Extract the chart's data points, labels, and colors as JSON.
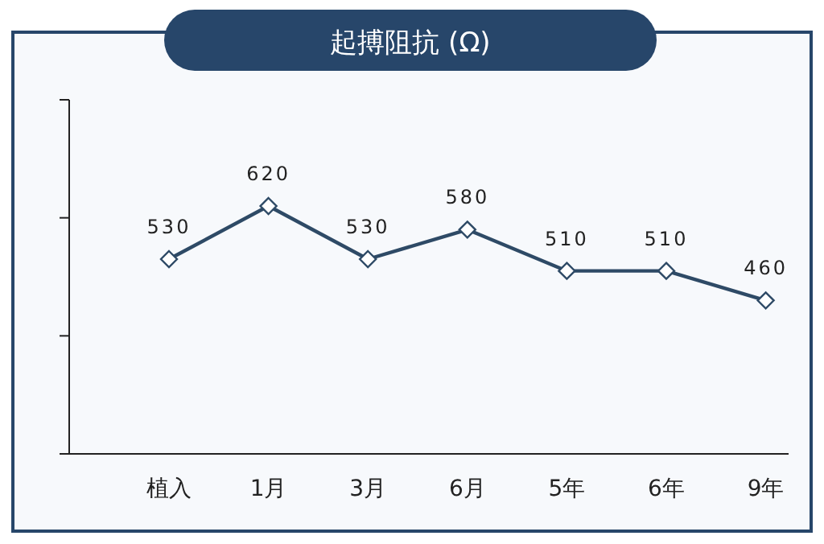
{
  "chart_data": {
    "type": "line",
    "title": "起搏阻抗 (Ω)",
    "categories": [
      "植入",
      "1月",
      "3月",
      "6月",
      "5年",
      "6年",
      "9年"
    ],
    "values": [
      530,
      620,
      530,
      580,
      510,
      510,
      460
    ],
    "color": "#2e4a66",
    "marker": "diamond",
    "line_style": "solid",
    "data_labels": true,
    "grid": false,
    "tick_labels": "x",
    "ylim": [
      200,
      800
    ],
    "yticks": [
      {
        "value": 200,
        "label": null
      },
      {
        "value": 400,
        "label": null
      },
      {
        "value": 600,
        "label": null
      },
      {
        "value": 800,
        "label": null
      }
    ]
  }
}
